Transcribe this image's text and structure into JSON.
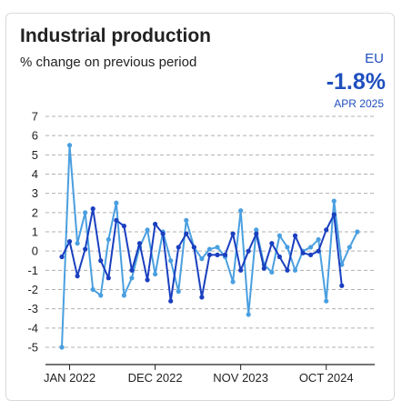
{
  "header": {
    "title": "Industrial production",
    "subtitle": "% change on previous period",
    "region": "EU",
    "headline_value": "-1.8%",
    "headline_period": "APR 2025"
  },
  "colors": {
    "series_dark": "#1a3fbf",
    "series_light": "#4a9fe0",
    "grid": "#b0b0b0",
    "axis": "#222222",
    "accent": "#1f4fbf"
  },
  "chart_data": {
    "type": "line",
    "title": "Industrial production",
    "subtitle": "% change on previous period",
    "ylim": [
      -5,
      7
    ],
    "yticks": [
      7,
      6,
      5,
      4,
      3,
      2,
      1,
      0,
      -1,
      -2,
      -3,
      -4,
      -5
    ],
    "x_tick_labels": [
      {
        "label": "JAN 2022",
        "index": 1
      },
      {
        "label": "DEC 2022",
        "index": 12
      },
      {
        "label": "NOV 2023",
        "index": 23
      },
      {
        "label": "OCT 2024",
        "index": 34
      }
    ],
    "grid": true,
    "series": [
      {
        "color_key": "series_dark",
        "values": [
          -0.3,
          0.5,
          -1.3,
          0.1,
          2.2,
          -0.5,
          -1.4,
          1.6,
          1.3,
          -1.0,
          0.4,
          -1.5,
          1.4,
          0.9,
          -2.6,
          0.2,
          0.9,
          0.2,
          -2.4,
          -0.2,
          -0.2,
          -0.2,
          0.9,
          -1.0,
          0.0,
          0.9,
          -0.9,
          0.4,
          -0.3,
          -1.0,
          0.8,
          -0.1,
          -0.2,
          0.0,
          1.1,
          1.9,
          -1.8
        ]
      },
      {
        "color_key": "series_light",
        "values": [
          -5.0,
          5.5,
          0.4,
          2.0,
          -2.0,
          -2.3,
          0.6,
          2.5,
          -2.3,
          -1.4,
          0.2,
          1.1,
          -1.2,
          1.0,
          -0.5,
          -2.1,
          1.6,
          0.2,
          -0.4,
          0.1,
          0.2,
          -0.3,
          -1.6,
          2.1,
          -3.3,
          1.1,
          -0.7,
          -1.1,
          0.8,
          0.2,
          -1.0,
          0.0,
          0.2,
          0.6,
          -2.6,
          2.6,
          -0.7,
          0.2,
          1.0
        ]
      }
    ]
  }
}
